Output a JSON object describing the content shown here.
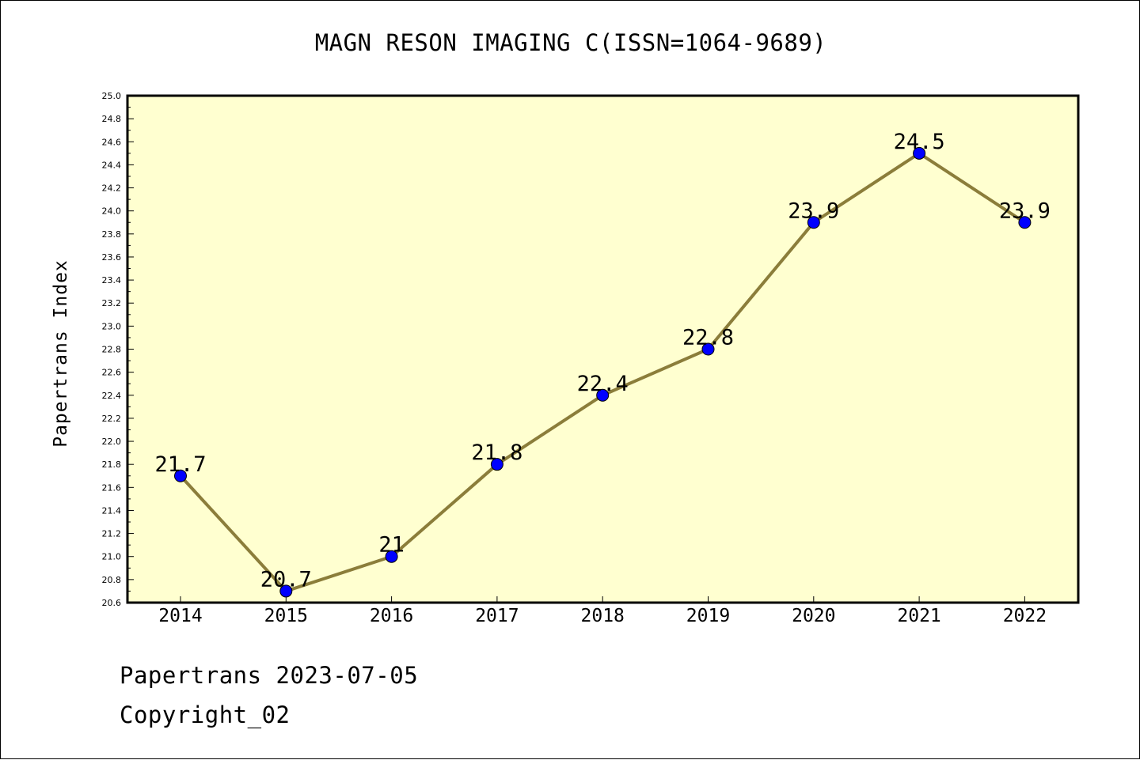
{
  "chart_data": {
    "type": "line",
    "title": "MAGN RESON IMAGING C(ISSN=1064-9689)",
    "xlabel": "",
    "ylabel": "Papertrans Index",
    "categories": [
      "2014",
      "2015",
      "2016",
      "2017",
      "2018",
      "2019",
      "2020",
      "2021",
      "2022"
    ],
    "series": [
      {
        "values": [
          21.7,
          20.7,
          21.0,
          21.8,
          22.4,
          22.8,
          23.9,
          24.5,
          23.9
        ],
        "data_labels": [
          "21.7",
          "20.7",
          "21",
          "21.8",
          "22.4",
          "22.8",
          "23.9",
          "24.5",
          "23.9"
        ]
      }
    ],
    "ylim": [
      20.6,
      25.0
    ],
    "yticks": [
      "20.6",
      "20.8",
      "21.0",
      "21.2",
      "21.4",
      "21.6",
      "21.8",
      "22.0",
      "22.2",
      "22.4",
      "22.6",
      "22.8",
      "23.0",
      "23.2",
      "23.4",
      "23.6",
      "23.8",
      "24.0",
      "24.2",
      "24.4",
      "24.6",
      "24.8",
      "25.0"
    ],
    "grid": false,
    "legend": "none",
    "colors": {
      "plot_background": "#ffffd0",
      "line": "#8b7d3a",
      "marker": "#0000ff"
    }
  },
  "footer": {
    "date_line": "Papertrans 2023-07-05",
    "copyright": "Copyright_02"
  }
}
